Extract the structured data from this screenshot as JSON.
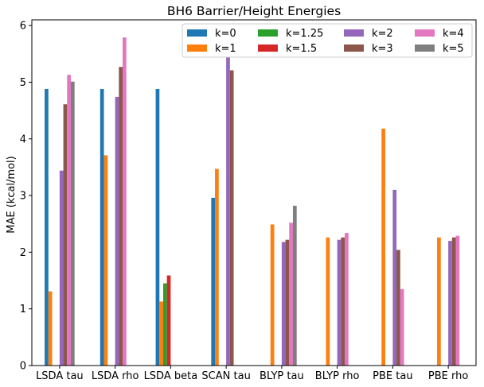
{
  "chart_data": {
    "type": "bar",
    "title": "BH6 Barrier/Height Energies",
    "xlabel": "",
    "ylabel": "MAE (kcal/mol)",
    "ylim": [
      0,
      6.1
    ],
    "yticks": [
      "0",
      "1",
      "2",
      "3",
      "4",
      "5",
      "6"
    ],
    "categories": [
      "LSDA tau",
      "LSDA rho",
      "LSDA beta",
      "SCAN tau",
      "BLYP tau",
      "BLYP rho",
      "PBE tau",
      "PBE rho"
    ],
    "series": [
      {
        "name": "k=0",
        "color": "#1f77b4",
        "values": [
          4.88,
          4.88,
          4.88,
          2.96,
          null,
          null,
          null,
          null
        ]
      },
      {
        "name": "k=1",
        "color": "#ff7f0e",
        "values": [
          1.31,
          3.71,
          1.13,
          3.47,
          2.49,
          2.26,
          4.18,
          2.26
        ]
      },
      {
        "name": "k=1.25",
        "color": "#2ca02c",
        "values": [
          null,
          null,
          1.45,
          null,
          null,
          null,
          null,
          null
        ]
      },
      {
        "name": "k=1.5",
        "color": "#d62728",
        "values": [
          null,
          null,
          1.59,
          null,
          null,
          null,
          null,
          null
        ]
      },
      {
        "name": "k=2",
        "color": "#9467bd",
        "values": [
          3.44,
          4.74,
          null,
          5.45,
          2.18,
          2.22,
          3.1,
          2.2
        ]
      },
      {
        "name": "k=3",
        "color": "#8c564b",
        "values": [
          4.61,
          5.27,
          null,
          5.21,
          2.22,
          2.26,
          2.04,
          2.26
        ]
      },
      {
        "name": "k=4",
        "color": "#e377c2",
        "values": [
          5.13,
          5.79,
          null,
          null,
          2.52,
          2.34,
          1.35,
          2.29
        ]
      },
      {
        "name": "k=5",
        "color": "#7f7f7f",
        "values": [
          5.01,
          null,
          null,
          null,
          2.82,
          null,
          null,
          null
        ]
      }
    ],
    "grid": false,
    "legend": {
      "position": "top-right",
      "columns": 4
    }
  }
}
